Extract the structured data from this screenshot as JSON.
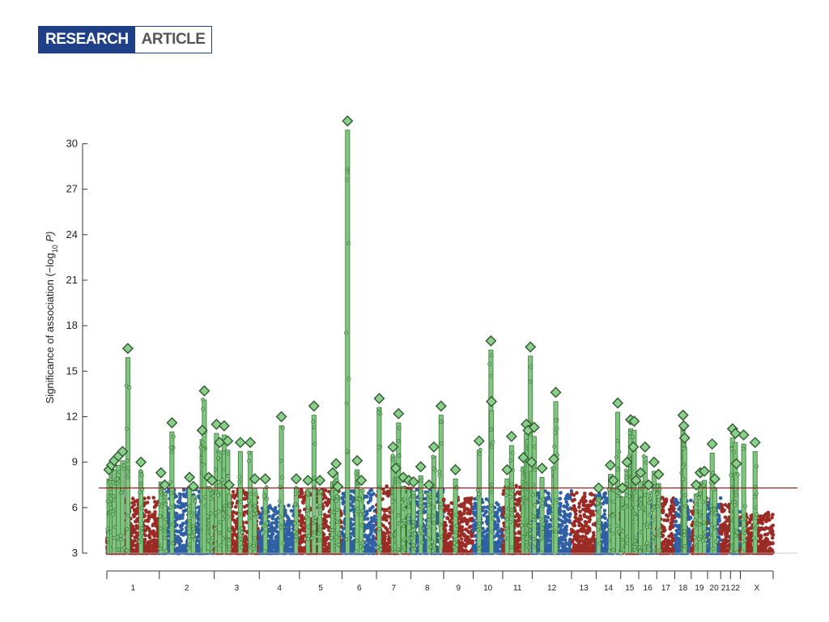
{
  "header": {
    "research": "RESEARCH",
    "article": "ARTICLE"
  },
  "colors": {
    "red": "#9b2b25",
    "blue": "#2f5fa5",
    "green": "#7fc47f",
    "green_dark": "#3d7a3d",
    "threshold": "#8a2020",
    "diamond_fill": "#8ccf8c",
    "diamond_stroke": "#2f5a2f"
  },
  "chart_data": {
    "type": "scatter",
    "title": "",
    "xlabel": "",
    "ylabel": "Significance of association (−log10 P)",
    "ylabel_parts": {
      "prefix": "Significance of association (−log",
      "sub": "10",
      "suffix": " P)"
    },
    "ylim": [
      3,
      32
    ],
    "yticks": [
      "3",
      "6",
      "9",
      "12",
      "15",
      "18",
      "21",
      "24",
      "27",
      "30"
    ],
    "threshold": 7.3,
    "chromosomes": [
      {
        "label": "1",
        "color": "red",
        "base": 6.5,
        "peaks": [
          [
            0.04,
            8.5
          ],
          [
            0.09,
            8.8
          ],
          [
            0.14,
            9.1
          ],
          [
            0.22,
            9.4
          ],
          [
            0.3,
            9.7
          ],
          [
            0.4,
            16.5
          ],
          [
            0.65,
            9.0
          ]
        ]
      },
      {
        "label": "2",
        "color": "blue",
        "base": 7.0,
        "peaks": [
          [
            0.03,
            8.3
          ],
          [
            0.1,
            7.5
          ],
          [
            0.23,
            11.6
          ],
          [
            0.55,
            8.0
          ],
          [
            0.62,
            7.4
          ],
          [
            0.78,
            11.1
          ],
          [
            0.82,
            13.7
          ],
          [
            0.9,
            8.0
          ],
          [
            0.96,
            7.8
          ]
        ]
      },
      {
        "label": "3",
        "color": "red",
        "base": 7.0,
        "peaks": [
          [
            0.05,
            11.5
          ],
          [
            0.12,
            10.3
          ],
          [
            0.22,
            11.4
          ],
          [
            0.3,
            10.4
          ],
          [
            0.33,
            7.5
          ],
          [
            0.58,
            10.3
          ],
          [
            0.8,
            10.3
          ],
          [
            0.9,
            7.9
          ]
        ]
      },
      {
        "label": "4",
        "color": "blue",
        "base": 6.0,
        "peaks": [
          [
            0.15,
            7.9
          ],
          [
            0.55,
            12.0
          ],
          [
            0.92,
            7.9
          ]
        ]
      },
      {
        "label": "5",
        "color": "red",
        "base": 7.0,
        "peaks": [
          [
            0.2,
            7.8
          ],
          [
            0.34,
            12.7
          ],
          [
            0.48,
            7.8
          ],
          [
            0.78,
            8.3
          ],
          [
            0.86,
            8.9
          ],
          [
            0.9,
            7.4
          ]
        ]
      },
      {
        "label": "6",
        "color": "blue",
        "base": 7.0,
        "peaks": [
          [
            0.16,
            31.5
          ],
          [
            0.44,
            9.1
          ],
          [
            0.56,
            7.8
          ]
        ]
      },
      {
        "label": "7",
        "color": "red",
        "base": 7.2,
        "peaks": [
          [
            0.08,
            13.2
          ],
          [
            0.48,
            10.0
          ],
          [
            0.56,
            8.6
          ],
          [
            0.64,
            12.2
          ],
          [
            0.78,
            8.0
          ],
          [
            0.94,
            7.8
          ]
        ]
      },
      {
        "label": "8",
        "color": "blue",
        "base": 7.0,
        "peaks": [
          [
            0.08,
            7.7
          ],
          [
            0.3,
            8.7
          ],
          [
            0.55,
            7.5
          ],
          [
            0.7,
            10.0
          ],
          [
            0.92,
            12.7
          ]
        ]
      },
      {
        "label": "9",
        "color": "red",
        "base": 6.5,
        "peaks": [
          [
            0.4,
            8.5
          ]
        ]
      },
      {
        "label": "10",
        "color": "blue",
        "base": 6.5,
        "peaks": [
          [
            0.2,
            10.4
          ],
          [
            0.6,
            17.0
          ],
          [
            0.62,
            13.0
          ]
        ]
      },
      {
        "label": "11",
        "color": "red",
        "base": 7.3,
        "peaks": [
          [
            0.15,
            8.5
          ],
          [
            0.3,
            10.7
          ],
          [
            0.7,
            9.3
          ],
          [
            0.8,
            11.5
          ],
          [
            0.86,
            11.1
          ],
          [
            0.94,
            16.6
          ],
          [
            0.98,
            9.0
          ]
        ]
      },
      {
        "label": "12",
        "color": "blue",
        "base": 7.0,
        "peaks": [
          [
            0.05,
            11.3
          ],
          [
            0.25,
            8.6
          ],
          [
            0.55,
            9.2
          ],
          [
            0.6,
            13.6
          ]
        ]
      },
      {
        "label": "13",
        "color": "red",
        "base": 6.8,
        "peaks": []
      },
      {
        "label": "14",
        "color": "blue",
        "base": 6.8,
        "peaks": [
          [
            0.1,
            7.3
          ],
          [
            0.58,
            8.8
          ],
          [
            0.7,
            7.8
          ],
          [
            0.88,
            12.9
          ]
        ]
      },
      {
        "label": "15",
        "color": "red",
        "base": 6.5,
        "peaks": [
          [
            0.1,
            7.3
          ],
          [
            0.35,
            9.0
          ],
          [
            0.55,
            11.8
          ],
          [
            0.7,
            10.0
          ],
          [
            0.75,
            11.7
          ],
          [
            0.85,
            7.8
          ]
        ]
      },
      {
        "label": "16",
        "color": "blue",
        "base": 6.5,
        "peaks": [
          [
            0.1,
            8.3
          ],
          [
            0.35,
            10.0
          ],
          [
            0.55,
            7.5
          ],
          [
            0.85,
            9.0
          ]
        ]
      },
      {
        "label": "17",
        "color": "red",
        "base": 6.5,
        "peaks": [
          [
            0.1,
            8.2
          ]
        ]
      },
      {
        "label": "18",
        "color": "blue",
        "base": 6.5,
        "peaks": [
          [
            0.5,
            12.1
          ],
          [
            0.55,
            11.4
          ],
          [
            0.6,
            10.6
          ]
        ]
      },
      {
        "label": "19",
        "color": "red",
        "base": 6.5,
        "peaks": [
          [
            0.3,
            7.5
          ],
          [
            0.55,
            8.3
          ],
          [
            0.8,
            8.4
          ]
        ]
      },
      {
        "label": "20",
        "color": "blue",
        "base": 6.5,
        "peaks": [
          [
            0.35,
            10.2
          ],
          [
            0.55,
            7.9
          ]
        ]
      },
      {
        "label": "21",
        "color": "red",
        "base": 6.2,
        "peaks": []
      },
      {
        "label": "22",
        "color": "blue",
        "base": 6.2,
        "peaks": [
          [
            0.2,
            11.2
          ],
          [
            0.5,
            10.9
          ],
          [
            0.6,
            8.9
          ]
        ]
      },
      {
        "label": "X",
        "color": "red",
        "base": 5.6,
        "peaks": [
          [
            0.1,
            10.8
          ],
          [
            0.45,
            10.3
          ]
        ]
      }
    ]
  }
}
